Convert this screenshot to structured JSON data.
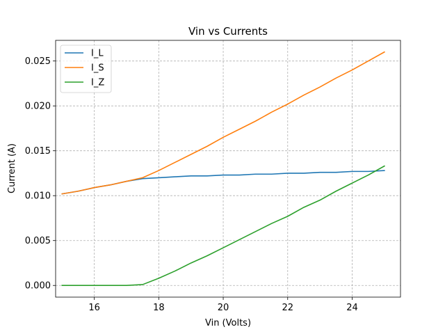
{
  "chart_data": {
    "type": "line",
    "title": "Vin vs Currents",
    "xlabel": "Vin (Volts)",
    "ylabel": "Current (A)",
    "xlim": [
      14.8,
      25.5
    ],
    "ylim": [
      -0.0013,
      0.0273
    ],
    "xticks": [
      16,
      18,
      20,
      22,
      24
    ],
    "xtick_labels": [
      "16",
      "18",
      "20",
      "22",
      "24"
    ],
    "yticks": [
      0,
      0.005,
      0.01,
      0.015,
      0.02,
      0.025
    ],
    "ytick_labels": [
      "0.000",
      "0.005",
      "0.010",
      "0.015",
      "0.020",
      "0.025"
    ],
    "grid": true,
    "legend_position": "top-left",
    "x": [
      15,
      15.5,
      16,
      16.5,
      17,
      17.5,
      18,
      18.5,
      19,
      19.5,
      20,
      20.5,
      21,
      21.5,
      22,
      22.5,
      23,
      23.5,
      24,
      24.5,
      25
    ],
    "series": [
      {
        "name": "I_L",
        "color": "#1f77b4",
        "values": [
          0.0102,
          0.0105,
          0.0109,
          0.0112,
          0.0116,
          0.0119,
          0.012,
          0.0121,
          0.0122,
          0.0122,
          0.0123,
          0.0123,
          0.0124,
          0.0124,
          0.0125,
          0.0125,
          0.0126,
          0.0126,
          0.0127,
          0.0127,
          0.0128
        ]
      },
      {
        "name": "I_S",
        "color": "#ff7f0e",
        "values": [
          0.0102,
          0.0105,
          0.0109,
          0.0112,
          0.0116,
          0.012,
          0.0128,
          0.0137,
          0.0146,
          0.0155,
          0.0165,
          0.0174,
          0.0183,
          0.0193,
          0.0202,
          0.0212,
          0.0221,
          0.0231,
          0.024,
          0.025,
          0.026
        ]
      },
      {
        "name": "I_Z",
        "color": "#2ca02c",
        "values": [
          0.0,
          0.0,
          0.0,
          0.0,
          0.0,
          0.0001,
          0.0008,
          0.0016,
          0.0025,
          0.0033,
          0.0042,
          0.0051,
          0.006,
          0.0069,
          0.0077,
          0.0087,
          0.0095,
          0.0105,
          0.0114,
          0.0123,
          0.0133
        ]
      }
    ]
  }
}
